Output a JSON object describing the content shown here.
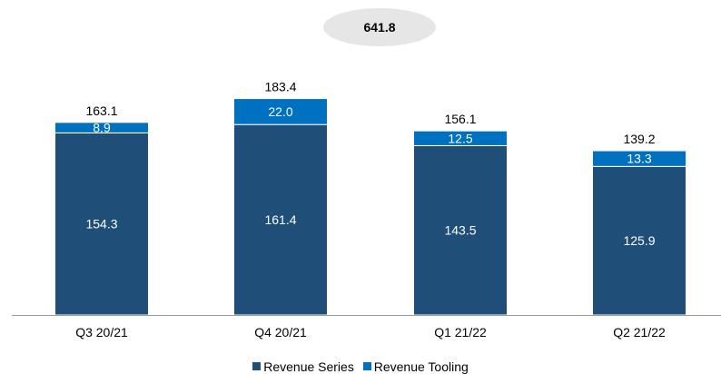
{
  "chart_data": {
    "type": "bar",
    "stacked": true,
    "categories": [
      "Q3 20/21",
      "Q4 20/21",
      "Q1 21/22",
      "Q2 21/22"
    ],
    "series": [
      {
        "name": "Revenue Series",
        "color": "#1f4e79",
        "values": [
          154.3,
          161.4,
          143.5,
          125.9
        ],
        "labels": [
          "154.3",
          "161.4",
          "143.5",
          "125.9"
        ]
      },
      {
        "name": "Revenue Tooling",
        "color": "#0070c0",
        "values": [
          8.9,
          22.0,
          12.5,
          13.3
        ],
        "labels": [
          "8.9",
          "22.0",
          "12.5",
          "13.3"
        ]
      }
    ],
    "totals": [
      "163.1",
      "183.4",
      "156.1",
      "139.2"
    ],
    "overall_total": "641.8",
    "legend_position": "bottom",
    "grid": false
  }
}
